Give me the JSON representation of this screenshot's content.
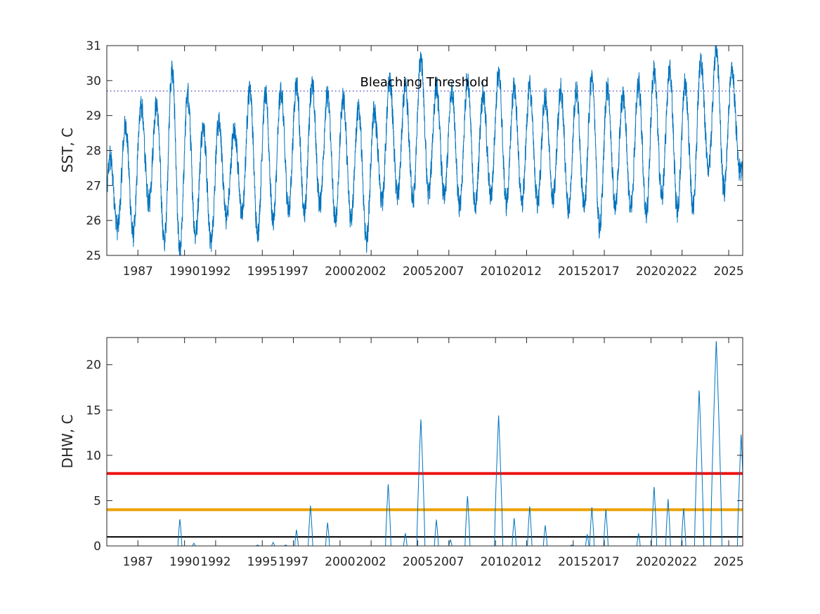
{
  "chart_data": [
    {
      "type": "line",
      "ylabel": "SST, C",
      "ylim": [
        25,
        31
      ],
      "xlim": [
        1985.0,
        2025.9
      ],
      "yticks": [
        25,
        26,
        27,
        28,
        29,
        30,
        31
      ],
      "xticks": [
        1987,
        1990,
        1992,
        1995,
        1997,
        2000,
        2002,
        2005,
        2007,
        2010,
        2012,
        2015,
        2017,
        2020,
        2022,
        2025
      ],
      "grid": false,
      "threshold": {
        "value": 29.7,
        "label": "Bleaching Threshold",
        "style": "dotted",
        "color": "#3a3ab8"
      },
      "series": [
        {
          "color": "#0072BD",
          "style": "noisy-seasonal",
          "peaks": [
            [
              1985.2,
              27.8
            ],
            [
              1986.2,
              28.7
            ],
            [
              1987.2,
              29.3
            ],
            [
              1988.2,
              29.3
            ],
            [
              1989.2,
              30.3
            ],
            [
              1990.2,
              29.6
            ],
            [
              1991.2,
              28.7
            ],
            [
              1992.2,
              28.8
            ],
            [
              1993.2,
              28.6
            ],
            [
              1994.2,
              29.8
            ],
            [
              1995.2,
              29.6
            ],
            [
              1996.2,
              29.7
            ],
            [
              1997.2,
              29.9
            ],
            [
              1998.2,
              29.9
            ],
            [
              1999.2,
              29.6
            ],
            [
              2000.2,
              29.5
            ],
            [
              2001.2,
              29.2
            ],
            [
              2002.2,
              29.1
            ],
            [
              2003.2,
              30.0
            ],
            [
              2004.2,
              29.8
            ],
            [
              2005.2,
              30.6
            ],
            [
              2006.2,
              29.8
            ],
            [
              2007.2,
              29.7
            ],
            [
              2008.2,
              30.0
            ],
            [
              2009.2,
              29.6
            ],
            [
              2010.2,
              30.2
            ],
            [
              2011.2,
              29.8
            ],
            [
              2012.2,
              29.8
            ],
            [
              2013.2,
              29.5
            ],
            [
              2014.2,
              29.7
            ],
            [
              2015.2,
              29.7
            ],
            [
              2016.2,
              30.1
            ],
            [
              2017.2,
              29.8
            ],
            [
              2018.2,
              29.6
            ],
            [
              2019.2,
              29.9
            ],
            [
              2020.2,
              30.3
            ],
            [
              2021.2,
              30.3
            ],
            [
              2022.2,
              29.9
            ],
            [
              2023.2,
              30.5
            ],
            [
              2024.2,
              30.9
            ],
            [
              2025.2,
              30.3
            ]
          ],
          "troughs": [
            [
              1985.7,
              25.8
            ],
            [
              1986.7,
              25.6
            ],
            [
              1987.7,
              26.5
            ],
            [
              1988.7,
              25.4
            ],
            [
              1989.7,
              25.1
            ],
            [
              1990.7,
              25.6
            ],
            [
              1991.7,
              25.4
            ],
            [
              1992.7,
              26.1
            ],
            [
              1993.7,
              26.2
            ],
            [
              1994.7,
              25.6
            ],
            [
              1995.7,
              26.0
            ],
            [
              1996.7,
              26.3
            ],
            [
              1997.7,
              26.2
            ],
            [
              1998.7,
              26.5
            ],
            [
              1999.7,
              26.0
            ],
            [
              2000.7,
              26.1
            ],
            [
              2001.7,
              25.4
            ],
            [
              2002.7,
              26.6
            ],
            [
              2003.7,
              26.7
            ],
            [
              2004.7,
              26.6
            ],
            [
              2005.7,
              26.8
            ],
            [
              2006.7,
              26.7
            ],
            [
              2007.7,
              26.4
            ],
            [
              2008.7,
              26.4
            ],
            [
              2009.7,
              26.7
            ],
            [
              2010.7,
              26.5
            ],
            [
              2011.7,
              26.5
            ],
            [
              2012.7,
              26.5
            ],
            [
              2013.7,
              26.6
            ],
            [
              2014.7,
              26.3
            ],
            [
              2015.7,
              26.4
            ],
            [
              2016.7,
              25.8
            ],
            [
              2017.7,
              26.4
            ],
            [
              2018.7,
              26.4
            ],
            [
              2019.7,
              26.2
            ],
            [
              2020.7,
              26.7
            ],
            [
              2021.7,
              26.3
            ],
            [
              2022.7,
              26.4
            ],
            [
              2023.7,
              27.5
            ],
            [
              2024.7,
              26.9
            ],
            [
              2025.7,
              27.5
            ]
          ]
        }
      ]
    },
    {
      "type": "line",
      "ylabel": "DHW, C",
      "ylim": [
        0,
        23
      ],
      "xlim": [
        1985.0,
        2025.9
      ],
      "yticks": [
        0,
        5,
        10,
        15,
        20
      ],
      "xticks": [
        1987,
        1990,
        1992,
        1995,
        1997,
        2000,
        2002,
        2005,
        2007,
        2010,
        2012,
        2015,
        2017,
        2020,
        2022,
        2025
      ],
      "grid": false,
      "reference_lines": [
        {
          "value": 1,
          "color": "#000000"
        },
        {
          "value": 4,
          "color": "#EDA000"
        },
        {
          "value": 8,
          "color": "#EE1111"
        }
      ],
      "series": [
        {
          "color": "#0072BD",
          "events": [
            [
              1989.7,
              3.0
            ],
            [
              1990.6,
              0.3
            ],
            [
              1994.7,
              0.1
            ],
            [
              1995.7,
              0.4
            ],
            [
              1996.5,
              0.1
            ],
            [
              1997.2,
              1.8
            ],
            [
              1998.1,
              4.5
            ],
            [
              1999.2,
              2.6
            ],
            [
              2003.1,
              6.9
            ],
            [
              2004.2,
              1.4
            ],
            [
              2005.2,
              14.1
            ],
            [
              2006.2,
              2.9
            ],
            [
              2007.1,
              0.7
            ],
            [
              2008.2,
              5.6
            ],
            [
              2010.2,
              14.5
            ],
            [
              2011.2,
              3.1
            ],
            [
              2012.2,
              4.4
            ],
            [
              2013.2,
              2.3
            ],
            [
              2014.9,
              0.1
            ],
            [
              2015.9,
              1.3
            ],
            [
              2016.2,
              4.3
            ],
            [
              2017.1,
              4.1
            ],
            [
              2019.2,
              1.4
            ],
            [
              2020.2,
              6.6
            ],
            [
              2021.1,
              5.2
            ],
            [
              2022.1,
              4.2
            ],
            [
              2023.1,
              17.3
            ],
            [
              2024.2,
              22.8
            ],
            [
              2025.8,
              12.4
            ]
          ]
        }
      ]
    }
  ]
}
